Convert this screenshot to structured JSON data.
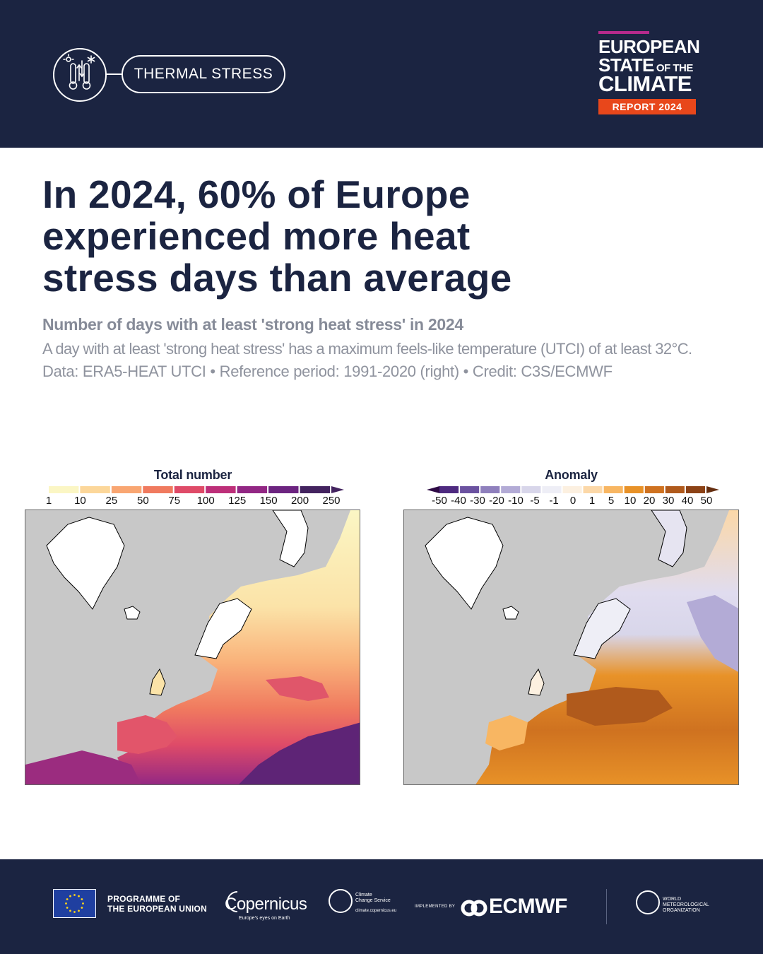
{
  "header": {
    "theme_icon": "thermometer-sun-snow-icon",
    "theme_label": "THERMAL STRESS",
    "report_logo": {
      "line1": "EUROPEAN",
      "line2_main": "STATE",
      "line2_small": "OF THE",
      "line3": "CLIMATE",
      "badge": "REPORT 2024"
    },
    "colors": {
      "navy": "#1b2441",
      "magenta": "#b62a8c",
      "orange": "#e8471b"
    }
  },
  "headline": {
    "line1": "In 2024, 60% of Europe",
    "line2": "experienced more heat",
    "line3": "stress days than average"
  },
  "subtitle": "Number of days with at least 'strong heat stress' in 2024",
  "description": "A day with at least 'strong heat stress' has a maximum feels-like temperature (UTCI) of at least 32°C.",
  "source": "Data: ERA5-HEAT UTCI • Reference period: 1991-2020 (right) • Credit: C3S/ECMWF",
  "maps": {
    "left": {
      "title": "Total number",
      "ticks": [
        "1",
        "10",
        "25",
        "50",
        "75",
        "100",
        "125",
        "150",
        "200",
        "250"
      ],
      "colors": [
        "#fbf6c4",
        "#fcd79a",
        "#f9a672",
        "#f07a5f",
        "#df4b68",
        "#bd2f79",
        "#922784",
        "#6c2480",
        "#43235f"
      ]
    },
    "right": {
      "title": "Anomaly",
      "ticks": [
        "-50",
        "-40",
        "-30",
        "-20",
        "-10",
        "-5",
        "-1",
        "0",
        "1",
        "5",
        "10",
        "20",
        "30",
        "40",
        "50"
      ],
      "colors": [
        "#2e0a45",
        "#4e2a80",
        "#6b52a0",
        "#8f80bd",
        "#b3abd6",
        "#d8d6ea",
        "#eeeef6",
        "#fcf0e0",
        "#fcd8a8",
        "#f8b662",
        "#e89228",
        "#cf7220",
        "#b05a1c",
        "#8c4216",
        "#652e10"
      ]
    }
  },
  "footer": {
    "eu_line1": "PROGRAMME OF",
    "eu_line2": "THE EUROPEAN UNION",
    "copernicus": "Copernicus",
    "copernicus_tagline": "Europe's eyes on Earth",
    "c3s_line1": "Climate",
    "c3s_line2": "Change Service",
    "c3s_url": "climate.copernicus.eu",
    "implemented_by": "IMPLEMENTED BY",
    "ecmwf": "ECMWF",
    "wmo_line1": "WORLD",
    "wmo_line2": "METEOROLOGICAL",
    "wmo_line3": "ORGANIZATION"
  }
}
